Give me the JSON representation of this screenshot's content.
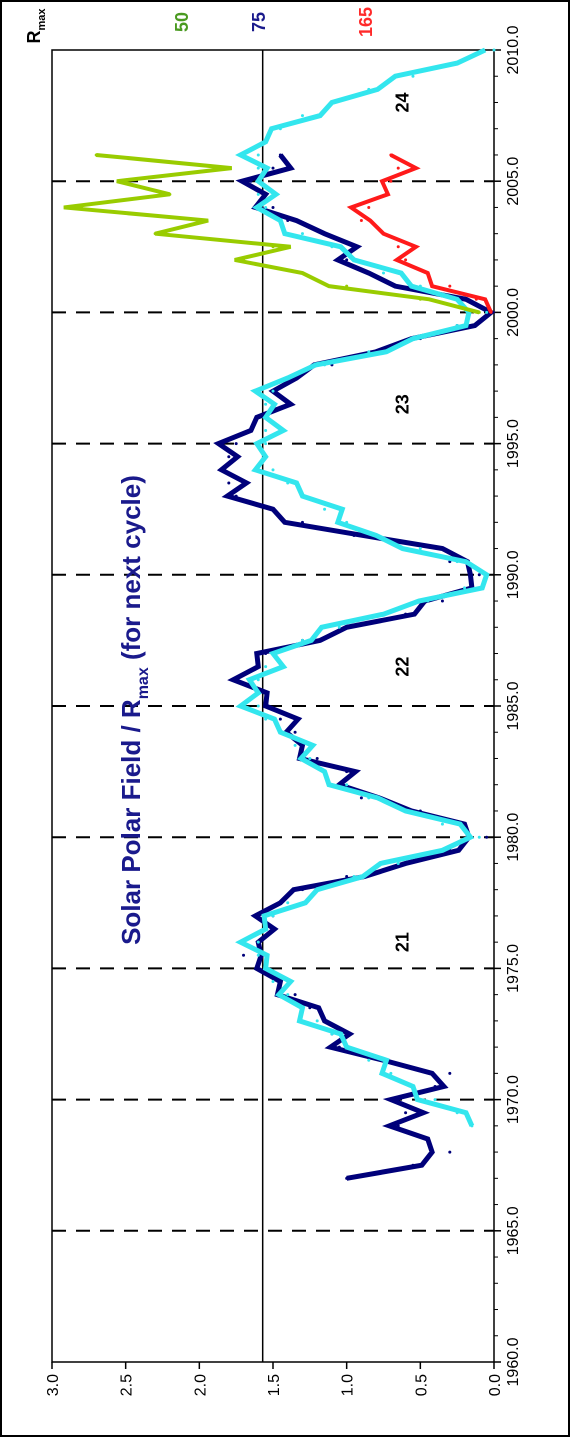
{
  "chart_data": {
    "type": "line",
    "title": "Solar Polar Field / Rmax (for next cycle)",
    "title_main": "Solar Polar Field / R",
    "title_sub": "max",
    "title_tail": " (for next cycle)",
    "title_color": "#1a1a8c",
    "xlabel": "",
    "ylabel": "",
    "xlim": [
      1960,
      2010
    ],
    "ylim": [
      0.0,
      3.0
    ],
    "grid": false,
    "legend": "none",
    "x_ticks": [
      "1960.0",
      "1965.0",
      "1970.0",
      "1975.0",
      "1980.0",
      "1985.0",
      "1990.0",
      "1995.0",
      "2000.0",
      "2005.0",
      "2010.0"
    ],
    "y_ticks": [
      "0.0",
      "0.5",
      "1.0",
      "1.5",
      "2.0",
      "2.5",
      "3.0"
    ],
    "vertical_dashed_lines": [
      1965,
      1970,
      1975,
      1980,
      1985,
      1990,
      1995,
      2000,
      2005
    ],
    "reference_line": {
      "y": 1.57,
      "color": "#000000"
    },
    "rmax_header": {
      "main": "R",
      "sub": "max"
    },
    "rmax_labels": [
      {
        "text": "50",
        "color": "#4a9a20"
      },
      {
        "text": "75",
        "color": "#1a1a8c"
      },
      {
        "text": "165",
        "color": "#ff2a2a"
      }
    ],
    "cycle_labels": [
      {
        "text": "21",
        "x": 1976.0,
        "y": 0.58
      },
      {
        "text": "22",
        "x": 1986.5,
        "y": 0.58
      },
      {
        "text": "23",
        "x": 1996.5,
        "y": 0.58
      },
      {
        "text": "24",
        "x": 2008.0,
        "y": 0.58
      }
    ],
    "series": [
      {
        "color": "#00007a",
        "x": [
          1967.0,
          1967.5,
          1968.0,
          1968.5,
          1969.0,
          1969.5,
          1970.0,
          1970.5,
          1971.0,
          1971.5,
          1972.0,
          1972.5,
          1973.0,
          1973.5,
          1974.0,
          1974.5,
          1975.0,
          1975.5,
          1976.0,
          1976.5,
          1977.0,
          1977.5,
          1978.0,
          1978.5,
          1979.0,
          1979.5,
          1980.0,
          1980.5,
          1981.0,
          1981.5,
          1982.0,
          1982.5,
          1983.0,
          1983.5,
          1984.0,
          1984.5,
          1985.0,
          1985.5,
          1986.0,
          1986.5,
          1987.0,
          1987.5,
          1988.0,
          1988.5,
          1989.0,
          1989.5,
          1990.0,
          1990.5,
          1991.0,
          1991.5,
          1992.0,
          1992.5,
          1993.0,
          1993.5,
          1994.0,
          1994.5,
          1995.0,
          1995.5,
          1996.0,
          1996.5,
          1997.0,
          1997.5,
          1998.0,
          1998.5,
          1999.0,
          1999.5,
          2000.0,
          2000.5,
          2001.0,
          2001.5,
          2002.0,
          2002.5,
          2003.0,
          2003.5,
          2004.0,
          2004.5,
          2005.0,
          2005.5,
          2006.0
        ],
        "y": [
          1.0,
          0.55,
          0.3,
          0.45,
          0.65,
          0.6,
          0.7,
          0.4,
          0.3,
          0.75,
          1.05,
          1.1,
          1.15,
          1.25,
          1.35,
          1.45,
          1.55,
          1.7,
          1.6,
          1.55,
          1.5,
          1.45,
          1.3,
          1.0,
          0.6,
          0.3,
          0.05,
          0.2,
          0.5,
          0.9,
          1.05,
          1.0,
          1.2,
          1.3,
          1.35,
          1.45,
          1.55,
          1.6,
          1.65,
          1.6,
          1.55,
          1.3,
          1.0,
          0.6,
          0.35,
          0.15,
          0.1,
          0.3,
          0.35,
          0.95,
          1.3,
          1.5,
          1.75,
          1.8,
          1.85,
          1.8,
          1.75,
          1.65,
          1.55,
          1.5,
          1.5,
          1.4,
          1.1,
          0.8,
          0.5,
          0.25,
          0.02,
          0.25,
          0.55,
          0.85,
          1.0,
          1.05,
          1.15,
          1.4,
          1.5,
          1.55,
          1.65,
          1.5,
          1.45
        ]
      },
      {
        "color": "#33e6ee",
        "x": [
          1969.0,
          1969.5,
          1970.0,
          1970.5,
          1971.0,
          1971.5,
          1972.0,
          1972.5,
          1973.0,
          1973.5,
          1974.0,
          1974.5,
          1975.0,
          1975.5,
          1976.0,
          1976.5,
          1977.0,
          1977.5,
          1978.0,
          1978.5,
          1979.0,
          1979.5,
          1980.0,
          1980.5,
          1981.0,
          1981.5,
          1982.0,
          1982.5,
          1983.0,
          1983.5,
          1984.0,
          1984.5,
          1985.0,
          1985.5,
          1986.0,
          1986.5,
          1987.0,
          1987.5,
          1988.0,
          1988.5,
          1989.0,
          1989.5,
          1990.0,
          1990.5,
          1991.0,
          1991.5,
          1992.0,
          1992.5,
          1993.0,
          1993.5,
          1994.0,
          1994.5,
          1995.0,
          1995.5,
          1996.0,
          1996.5,
          1997.0,
          1997.5,
          1998.0,
          1998.5,
          1999.0,
          1999.5,
          2000.0,
          2000.5,
          2001.0,
          2001.5,
          2002.0,
          2002.5,
          2003.0,
          2003.5,
          2004.0,
          2004.5,
          2005.0,
          2005.5,
          2006.0,
          2006.5,
          2007.0,
          2007.5,
          2008.0,
          2008.5,
          2009.0,
          2009.5,
          2010.0
        ],
        "y": [
          0.15,
          0.25,
          0.4,
          0.55,
          0.7,
          0.85,
          1.0,
          1.1,
          1.2,
          1.3,
          1.4,
          1.5,
          1.55,
          1.6,
          1.6,
          1.55,
          1.5,
          1.4,
          1.2,
          0.95,
          0.65,
          0.35,
          0.1,
          0.35,
          0.6,
          0.85,
          1.0,
          1.15,
          1.25,
          1.35,
          1.45,
          1.55,
          1.6,
          1.6,
          1.6,
          1.55,
          1.5,
          1.3,
          1.05,
          0.75,
          0.45,
          0.2,
          0.05,
          0.25,
          0.5,
          0.8,
          1.0,
          1.15,
          1.3,
          1.4,
          1.5,
          1.55,
          1.55,
          1.55,
          1.55,
          1.55,
          1.5,
          1.4,
          1.15,
          0.85,
          0.55,
          0.25,
          0.05,
          0.25,
          0.5,
          0.75,
          0.95,
          1.1,
          1.3,
          1.45,
          1.55,
          1.6,
          1.6,
          1.6,
          1.6,
          1.55,
          1.45,
          1.3,
          1.1,
          0.85,
          0.55,
          0.25,
          0.0
        ]
      },
      {
        "color": "#99cc00",
        "x": [
          2000.0,
          2000.5,
          2001.0,
          2001.5,
          2002.0,
          2002.5,
          2003.0,
          2003.5,
          2004.0,
          2004.5,
          2005.0,
          2005.5,
          2006.0
        ],
        "y": [
          0.1,
          0.5,
          1.0,
          1.3,
          1.7,
          1.5,
          2.3,
          2.0,
          2.8,
          2.2,
          2.5,
          1.9,
          2.7
        ]
      },
      {
        "color": "#ff1a1a",
        "x": [
          2000.0,
          2000.5,
          2001.0,
          2001.5,
          2002.0,
          2002.5,
          2003.0,
          2003.5,
          2004.0,
          2004.5,
          2005.0,
          2005.5,
          2006.0
        ],
        "y": [
          0.02,
          0.12,
          0.3,
          0.45,
          0.6,
          0.65,
          0.75,
          0.9,
          0.85,
          0.72,
          0.7,
          0.65,
          0.7
        ]
      }
    ]
  }
}
